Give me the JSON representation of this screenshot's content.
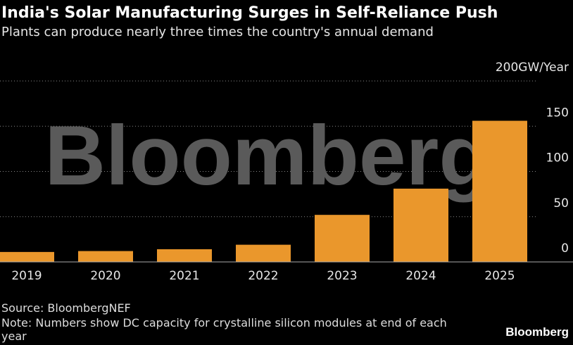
{
  "chart_data": {
    "type": "bar",
    "title": "India's Solar Manufacturing Surges in Self-Reliance Push",
    "subtitle": "Plants can produce nearly three times the country's annual demand",
    "categories": [
      "2019",
      "2020",
      "2021",
      "2022",
      "2023",
      "2024",
      "2025"
    ],
    "values": [
      11,
      12,
      14,
      19,
      52,
      81,
      156
    ],
    "color": "#ea972c",
    "ylim": [
      0,
      200
    ],
    "yticks": [
      0,
      50,
      100,
      150,
      {
        "value": 200,
        "label": "200GW/Year"
      }
    ],
    "grid": true,
    "watermark": "Bloomberg",
    "source": "Source: BloombergNEF",
    "note": "Note: Numbers show DC capacity for crystalline silicon modules at end of each year",
    "logo": "Bloomberg"
  }
}
